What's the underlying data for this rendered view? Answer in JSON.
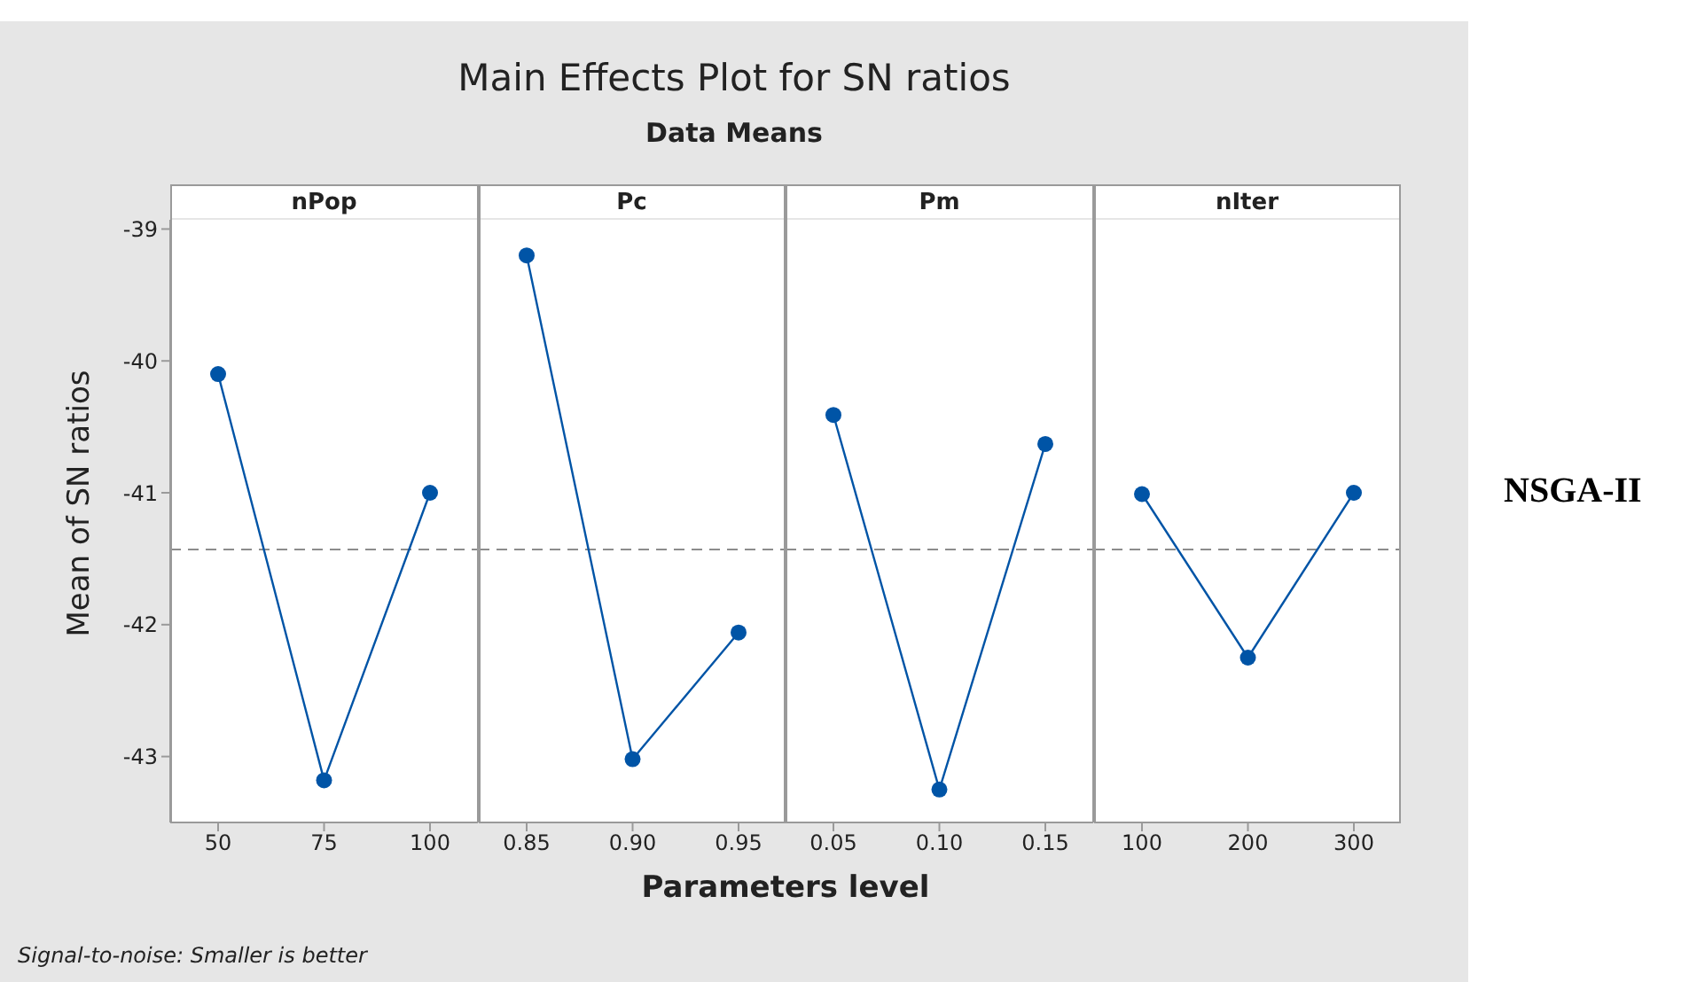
{
  "chart_data": [
    {
      "type": "line",
      "xlabel": "Parameters level",
      "ylabel": "Mean of SN ratios",
      "annotations": [
        "Main Effects Plot for SN ratios",
        "Data Means",
        "Signal-to-noise: Smaller is better",
        "NSGA-II"
      ],
      "categories": [
        "50",
        "75",
        "100"
      ],
      "series": [
        {
          "name": "nPop",
          "color": "#0054a6",
          "values": [
            -40.1,
            -43.18,
            -41.0
          ]
        }
      ],
      "ylim": [
        -43.5,
        -38.93
      ],
      "yticks": [
        -43,
        -42,
        -41,
        -40,
        -39
      ],
      "ref_lines": [
        {
          "axis": "y",
          "value": -41.43,
          "color": "#8c8c8c",
          "line_style": "dashed"
        }
      ],
      "grid": false,
      "legend": false,
      "marker": "circle",
      "line_style": "solid"
    },
    {
      "type": "line",
      "categories": [
        "0.85",
        "0.90",
        "0.95"
      ],
      "series": [
        {
          "name": "Pc",
          "color": "#0054a6",
          "values": [
            -39.2,
            -43.02,
            -42.06
          ]
        }
      ],
      "ylim": [
        -43.5,
        -38.93
      ],
      "tick_labels": "x",
      "ref_lines": [
        {
          "axis": "y",
          "value": -41.43,
          "color": "#8c8c8c",
          "line_style": "dashed"
        }
      ],
      "grid": false,
      "legend": false,
      "marker": "circle",
      "line_style": "solid"
    },
    {
      "type": "line",
      "categories": [
        "0.05",
        "0.10",
        "0.15"
      ],
      "series": [
        {
          "name": "Pm",
          "color": "#0054a6",
          "values": [
            -40.41,
            -43.25,
            -40.63
          ]
        }
      ],
      "ylim": [
        -43.5,
        -38.93
      ],
      "tick_labels": "x",
      "ref_lines": [
        {
          "axis": "y",
          "value": -41.43,
          "color": "#8c8c8c",
          "line_style": "dashed"
        }
      ],
      "grid": false,
      "legend": false,
      "marker": "circle",
      "line_style": "solid"
    },
    {
      "type": "line",
      "categories": [
        "100",
        "200",
        "300"
      ],
      "series": [
        {
          "name": "nIter",
          "color": "#0054a6",
          "values": [
            -41.01,
            -42.25,
            -41.0
          ]
        }
      ],
      "ylim": [
        -43.5,
        -38.93
      ],
      "tick_labels": "x",
      "ref_lines": [
        {
          "axis": "y",
          "value": -41.43,
          "color": "#8c8c8c",
          "line_style": "dashed"
        }
      ],
      "grid": false,
      "legend": false,
      "marker": "circle",
      "line_style": "solid"
    }
  ]
}
